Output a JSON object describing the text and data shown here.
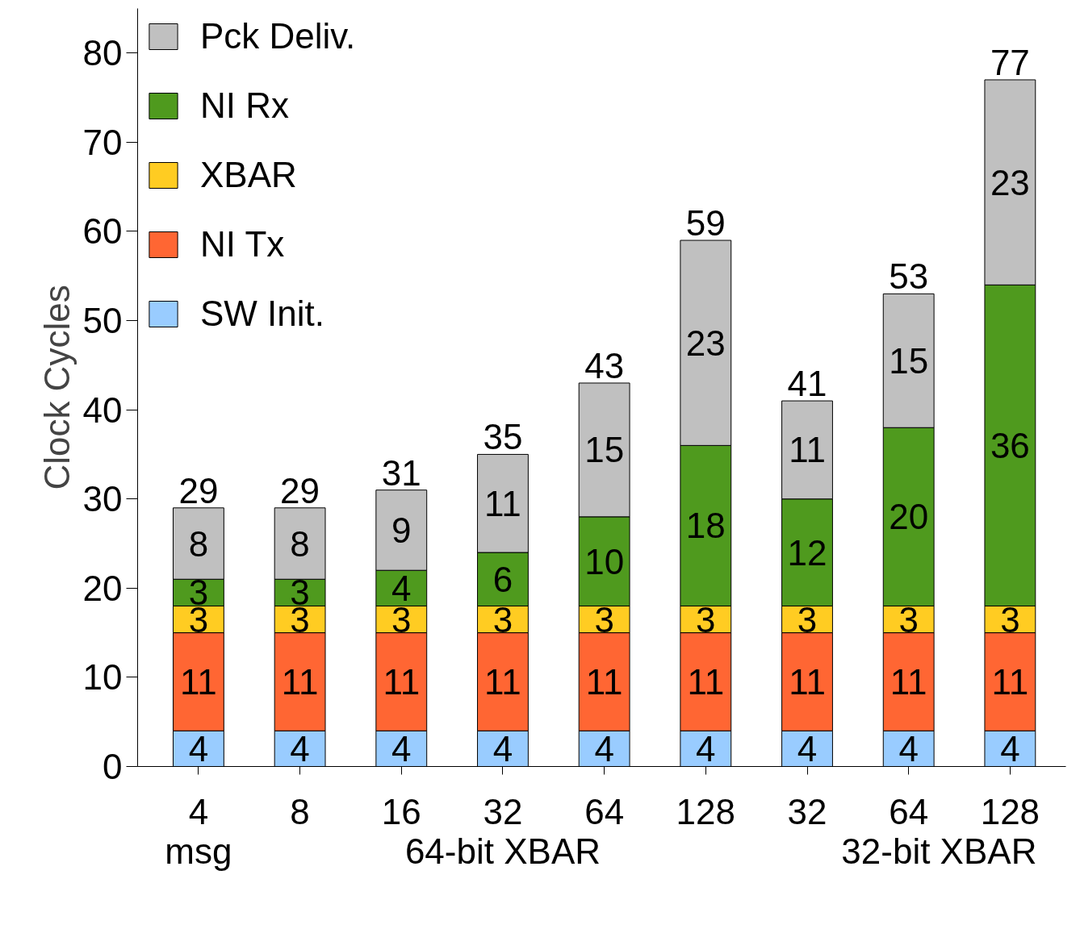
{
  "chart_data": {
    "type": "bar",
    "stacked": true,
    "ylabel": "Clock Cycles",
    "categories": [
      "4",
      "8",
      "16",
      "32",
      "64",
      "128",
      "32",
      "64",
      "128"
    ],
    "series": [
      {
        "name": "SW Init.",
        "color": "#99ccff",
        "values": [
          4,
          4,
          4,
          4,
          4,
          4,
          4,
          4,
          4
        ]
      },
      {
        "name": "NI Tx",
        "color": "#ff6633",
        "values": [
          11,
          11,
          11,
          11,
          11,
          11,
          11,
          11,
          11
        ]
      },
      {
        "name": "XBAR",
        "color": "#ffcc22",
        "values": [
          3,
          3,
          3,
          3,
          3,
          3,
          3,
          3,
          3
        ]
      },
      {
        "name": "NI Rx",
        "color": "#4f9a1e",
        "values": [
          3,
          3,
          4,
          6,
          10,
          18,
          12,
          20,
          36
        ]
      },
      {
        "name": "Pck Deliv.",
        "color": "#c0c0c0",
        "values": [
          8,
          8,
          9,
          11,
          15,
          23,
          11,
          15,
          23
        ]
      }
    ],
    "totals": [
      "29",
      "29",
      "31",
      "35",
      "43",
      "59",
      "41",
      "53",
      "77"
    ],
    "data_labels": true,
    "ylim": [
      0,
      85
    ],
    "yticks": [
      0,
      10,
      20,
      30,
      40,
      50,
      60,
      70,
      80
    ],
    "grid": false,
    "legend": "top left",
    "annotations": [
      "msg",
      "64-bit XBAR",
      "32-bit XBAR"
    ]
  }
}
